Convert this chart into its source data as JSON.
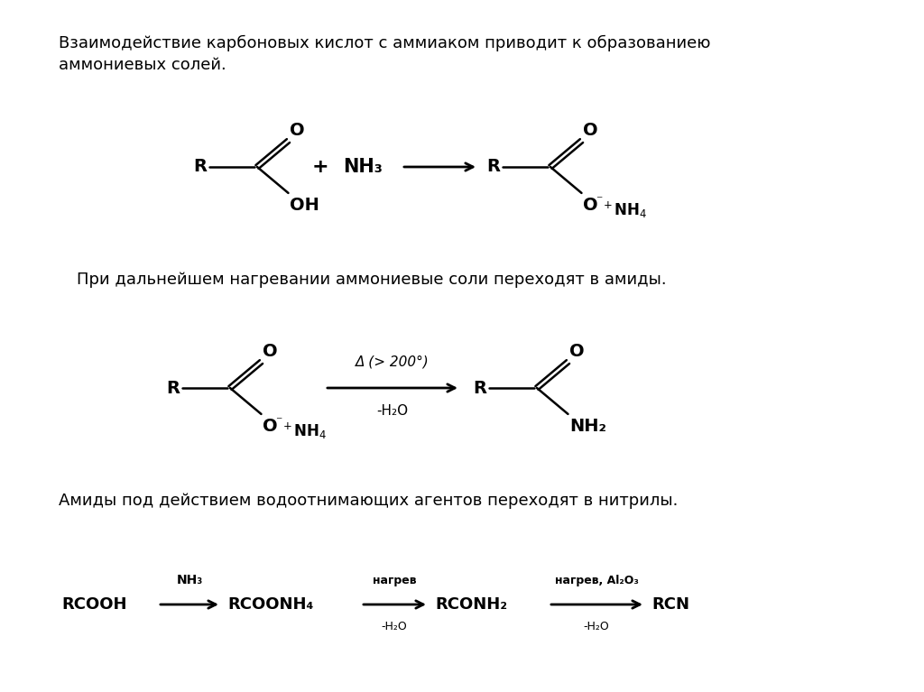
{
  "bg_color": "#ffffff",
  "text1": "Взаимодействие карбоновых кислот с аммиаком приводит к образованиею",
  "text1b": "аммониевых солей.",
  "text2": "При дальнейшем нагревании аммониевые соли переходят в амиды.",
  "text3": "Амиды под действием водоотнимающих агентов переходят в нитрилы.",
  "fsz_text": 13,
  "fsz_mol": 14,
  "fsz_sub": 11
}
